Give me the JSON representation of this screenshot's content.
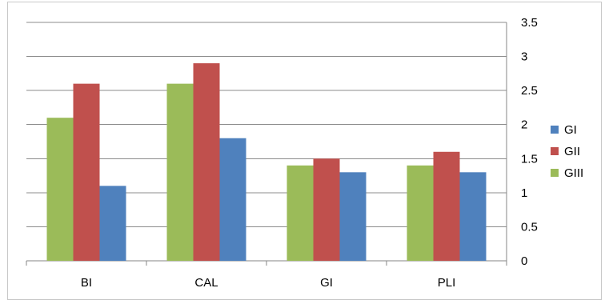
{
  "chart_data": {
    "type": "bar",
    "categories": [
      "BI",
      "CAL",
      "GI",
      "PLI"
    ],
    "series": [
      {
        "name": "GIII",
        "color": "#9bbb59",
        "values": [
          2.1,
          2.6,
          1.4,
          1.4
        ]
      },
      {
        "name": "GII",
        "color": "#c0504d",
        "values": [
          2.6,
          2.9,
          1.5,
          1.6
        ]
      },
      {
        "name": "GI",
        "color": "#4f81bd",
        "values": [
          1.1,
          1.8,
          1.3,
          1.3
        ]
      }
    ],
    "legend_order": [
      "GI",
      "GII",
      "GIII"
    ],
    "ylim": [
      0,
      3.5
    ],
    "yticks": [
      "0",
      "0.5",
      "1",
      "1.5",
      "2",
      "2.5",
      "3",
      "3.5"
    ],
    "y_axis_position": "right",
    "grid": true,
    "legend_position": "right",
    "title": "",
    "xlabel": "",
    "ylabel": ""
  }
}
